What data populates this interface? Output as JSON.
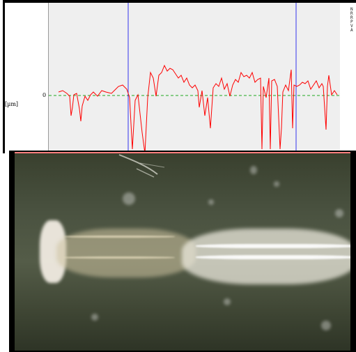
{
  "profile": {
    "y_tick_zero": "0",
    "y_axis_unit": "[µm]",
    "side_labels": [
      "N",
      "R",
      "R",
      "P",
      "V",
      "A"
    ],
    "colors": {
      "plot_background": "#efefef",
      "trace": "#ff0000",
      "mean_line": "#22aa22",
      "cursor": "#3333ee"
    }
  },
  "photo": {
    "description_icon": "microscope-photo"
  }
}
